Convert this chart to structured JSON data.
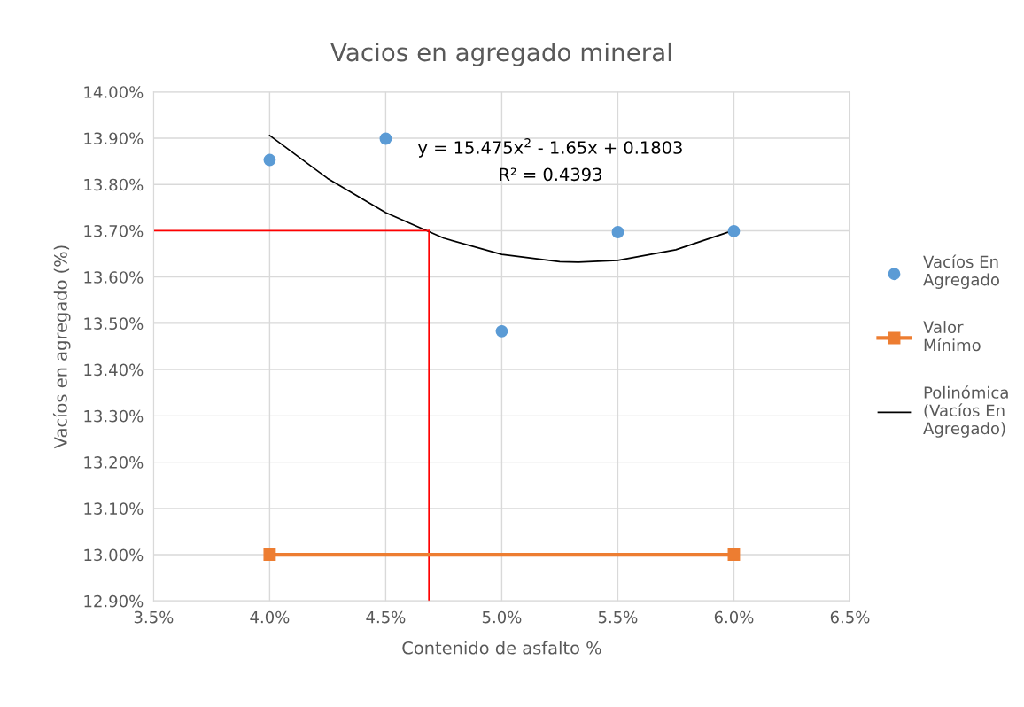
{
  "chart_data": {
    "type": "scatter",
    "title": "Vacios en agregado mineral",
    "xlabel": "Contenido de asfalto %",
    "ylabel": "Vacíos en agregado (%)",
    "series": [
      {
        "name": "Vacíos En Agregado",
        "color": "#5b9bd5",
        "marker": "circle",
        "x": [
          4.0,
          4.5,
          5.0,
          5.5,
          6.0
        ],
        "values": [
          13.853,
          13.899,
          13.483,
          13.697,
          13.699
        ]
      },
      {
        "name": "Valor Mínimo",
        "type": "line",
        "color": "#ed7d31",
        "marker": "square",
        "x": [
          4.0,
          6.0
        ],
        "values": [
          13.0,
          13.0
        ]
      },
      {
        "name": "Polinómica (Vacíos En Agregado)",
        "type": "line",
        "color": "#000000",
        "marker": "none",
        "x": [
          4.0,
          4.25,
          4.5,
          4.75,
          5.0,
          5.25,
          5.33,
          5.5,
          5.75,
          6.0
        ],
        "values": [
          13.906,
          13.813,
          13.739,
          13.684,
          13.649,
          13.633,
          13.632,
          13.636,
          13.659,
          13.701
        ]
      },
      {
        "type": "line",
        "color": "#ff0000",
        "marker": "none",
        "x": [
          3.5,
          4.686
        ],
        "values": [
          13.7,
          13.7
        ]
      },
      {
        "type": "line",
        "color": "#ff0000",
        "marker": "none",
        "x": [
          4.686,
          4.686
        ],
        "values": [
          12.9,
          13.7
        ]
      }
    ],
    "xlim": [
      3.5,
      6.5
    ],
    "xticks": [
      {
        "value": 3.5,
        "label": "3.5%"
      },
      {
        "value": 4.0,
        "label": "4.0%"
      },
      {
        "value": 4.5,
        "label": "4.5%"
      },
      {
        "value": 5.0,
        "label": "5.0%"
      },
      {
        "value": 5.5,
        "label": "5.5%"
      },
      {
        "value": 6.0,
        "label": "6.0%"
      },
      {
        "value": 6.5,
        "label": "6.5%"
      }
    ],
    "ylim": [
      12.9,
      14.0
    ],
    "yticks": [
      {
        "value": 12.9,
        "label": "12.90%"
      },
      {
        "value": 13.0,
        "label": "13.00%"
      },
      {
        "value": 13.1,
        "label": "13.10%"
      },
      {
        "value": 13.2,
        "label": "13.20%"
      },
      {
        "value": 13.3,
        "label": "13.30%"
      },
      {
        "value": 13.4,
        "label": "13.40%"
      },
      {
        "value": 13.5,
        "label": "13.50%"
      },
      {
        "value": 13.6,
        "label": "13.60%"
      },
      {
        "value": 13.7,
        "label": "13.70%"
      },
      {
        "value": 13.8,
        "label": "13.80%"
      },
      {
        "value": 13.9,
        "label": "13.90%"
      },
      {
        "value": 14.0,
        "label": "14.00%"
      }
    ],
    "grid": true,
    "legend": "right",
    "annotations": [
      "y = 15.475x$^{2}$ - 1.65x + 0.1803",
      "R² = 0.4393"
    ]
  }
}
